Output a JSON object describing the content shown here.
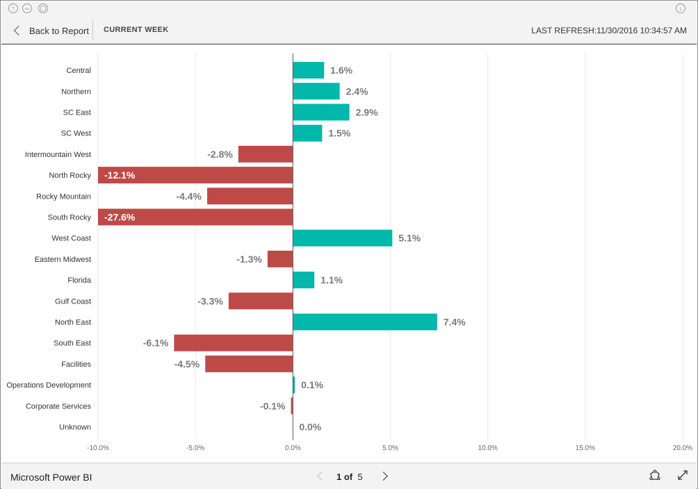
{
  "toolbar": {
    "back_label": "Back to Report",
    "page_name": "CURRENT WEEK",
    "last_refresh_label": "LAST REFRESH:",
    "last_refresh_value": "11/30/2016 10:34:57 AM"
  },
  "footer": {
    "brand": "Microsoft Power BI",
    "current_page": "1",
    "of_label": "of",
    "total_pages": "5"
  },
  "icons": {
    "top": [
      "up-arrow-icon",
      "fit-to-width-icon",
      "lock-icon",
      "download-icon"
    ],
    "bottom": [
      "share-icon",
      "expand-icon"
    ]
  },
  "colors": {
    "positive": "#01b8aa",
    "negative": "#be4a47",
    "grid": "#e8e8e8",
    "axis": "#555555"
  },
  "chart_data": {
    "type": "bar",
    "orientation": "horizontal",
    "categories": [
      "Central",
      "Northern",
      "SC East",
      "SC West",
      "Intermountain West",
      "North Rocky",
      "Rocky Mountain",
      "South Rocky",
      "West Coast",
      "Eastern Midwest",
      "Florida",
      "Gulf Coast",
      "North East",
      "South East",
      "Facilities",
      "Operations Development",
      "Corporate Services",
      "Unknown"
    ],
    "values": [
      1.6,
      2.4,
      2.9,
      1.5,
      -2.8,
      -12.1,
      -4.4,
      -27.6,
      5.1,
      -1.3,
      1.1,
      -3.3,
      7.4,
      -6.1,
      -4.5,
      0.1,
      -0.1,
      0.0
    ],
    "value_labels": [
      "1.6%",
      "2.4%",
      "2.9%",
      "1.5%",
      "-2.8%",
      "-12.1%",
      "-4.4%",
      "-27.6%",
      "5.1%",
      "-1.3%",
      "1.1%",
      "-3.3%",
      "7.4%",
      "-6.1%",
      "-4.5%",
      "0.1%",
      "-0.1%",
      "0.0%"
    ],
    "xlim": [
      -10,
      20
    ],
    "xticks": [
      -10,
      -5,
      0,
      5,
      10,
      15,
      20
    ],
    "xtick_labels": [
      "-10.0%",
      "-5.0%",
      "0.0%",
      "5.0%",
      "10.0%",
      "15.0%",
      "20.0%"
    ],
    "grid": true,
    "title": "",
    "xlabel": "",
    "ylabel": ""
  }
}
